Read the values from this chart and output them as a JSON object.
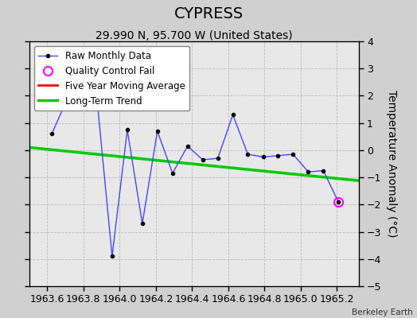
{
  "title": "CYPRESS",
  "subtitle": "29.990 N, 95.700 W (United States)",
  "credit": "Berkeley Earth",
  "ylabel": "Temperature Anomaly (°C)",
  "xlim": [
    1963.5,
    1965.32
  ],
  "ylim": [
    -5,
    4
  ],
  "xticks": [
    1963.6,
    1963.8,
    1964.0,
    1964.2,
    1964.4,
    1964.6,
    1964.8,
    1965.0,
    1965.2
  ],
  "yticks": [
    -5,
    -4,
    -3,
    -2,
    -1,
    0,
    1,
    2,
    3,
    4
  ],
  "raw_x": [
    1963.625,
    1963.708,
    1963.792,
    1963.875,
    1963.958,
    1964.042,
    1964.125,
    1964.208,
    1964.292,
    1964.375,
    1964.458,
    1964.542,
    1964.625,
    1964.708,
    1964.792,
    1964.875,
    1964.958,
    1965.042,
    1965.125,
    1965.208
  ],
  "raw_y": [
    0.6,
    1.85,
    1.55,
    1.85,
    -3.9,
    0.75,
    -2.7,
    0.7,
    -0.85,
    0.15,
    -0.35,
    -0.3,
    1.3,
    -0.15,
    -0.25,
    -0.2,
    -0.15,
    -0.8,
    -0.75,
    -1.9
  ],
  "qc_fail_x": [
    1965.208
  ],
  "qc_fail_y": [
    -1.9
  ],
  "trend_x": [
    1963.5,
    1965.32
  ],
  "trend_y": [
    0.1,
    -1.12
  ],
  "raw_color": "#4444ff",
  "raw_marker_color": "#000000",
  "qc_color": "#ff00ff",
  "trend_color": "#00cc00",
  "five_year_color": "#ff0000",
  "bg_color": "#d0d0d0",
  "plot_bg_color": "#e8e8e8",
  "title_fontsize": 14,
  "subtitle_fontsize": 10,
  "axis_fontsize": 9,
  "ylabel_fontsize": 10
}
